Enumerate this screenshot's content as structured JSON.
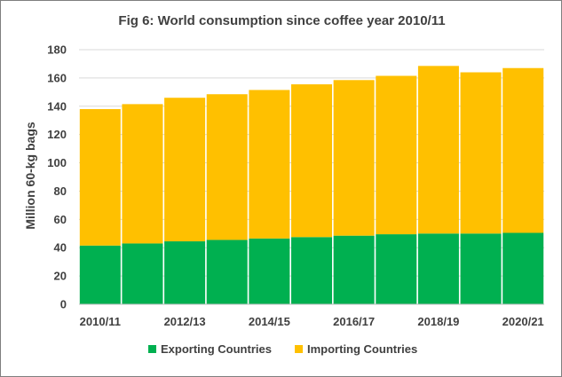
{
  "chart_data": {
    "type": "bar",
    "stacked": true,
    "title": "Fig 6: World consumption since coffee year 2010/11",
    "xlabel": "",
    "ylabel": "Million 60-kg bags",
    "ylim": [
      0,
      180
    ],
    "yticks": [
      0,
      20,
      40,
      60,
      80,
      100,
      120,
      140,
      160,
      180
    ],
    "categories": [
      "2010/11",
      "2011/12",
      "2012/13",
      "2013/14",
      "2014/15",
      "2015/16",
      "2016/17",
      "2017/18",
      "2018/19",
      "2019/20",
      "2020/21"
    ],
    "x_tick_labels": [
      "2010/11",
      "",
      "2012/13",
      "",
      "2014/15",
      "",
      "2016/17",
      "",
      "2018/19",
      "",
      "2020/21"
    ],
    "grid": true,
    "legend_position": "bottom",
    "series": [
      {
        "name": "Exporting Countries",
        "color": "#00b050",
        "values": [
          41.5,
          43,
          44.5,
          45.5,
          46.5,
          47.5,
          48.5,
          49.5,
          50,
          50,
          50.5
        ]
      },
      {
        "name": "Importing Countries",
        "color": "#ffc000",
        "values": [
          96.5,
          98.5,
          101.5,
          103,
          105,
          108,
          110,
          112,
          118.5,
          114,
          116.5
        ]
      }
    ]
  }
}
